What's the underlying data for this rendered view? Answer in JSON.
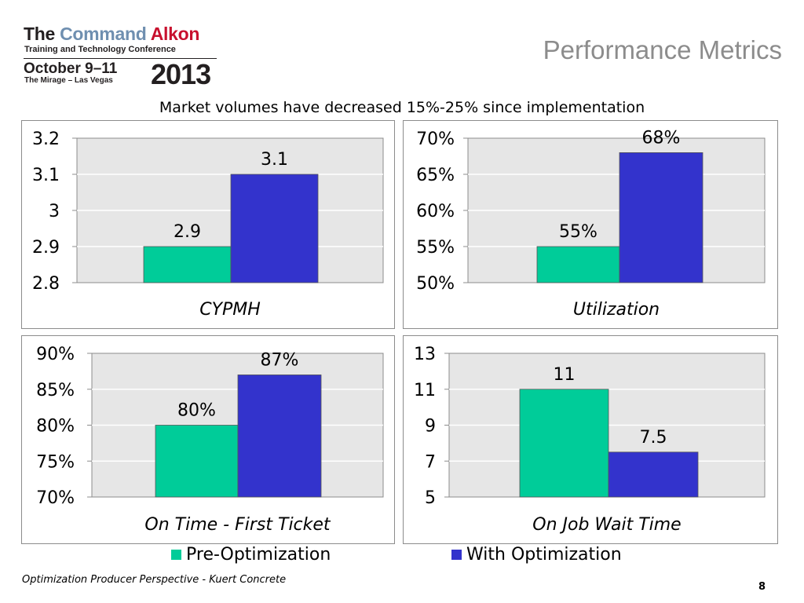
{
  "logo": {
    "line1_a": "The",
    "line1_b": "Command",
    "line1_c": "Alkon",
    "line2": "Training and Technology Conference",
    "line3": "October 9–11",
    "line4": "The Mirage – Las Vegas",
    "year": "2013"
  },
  "title": "Performance Metrics",
  "subtitle": "Market volumes have decreased 15%-25% since implementation",
  "colors": {
    "pre": "#00CC99",
    "with": "#3333CC",
    "plot_bg": "#E6E6E6",
    "border": "#8C8C8C",
    "grid": "#FFFFFF"
  },
  "legend": {
    "pre": "Pre-Optimization",
    "with": "With Optimization"
  },
  "chart_data": [
    {
      "type": "bar",
      "xlabel": "CYPMH",
      "ylim": [
        2.8,
        3.2
      ],
      "yticks": [
        "3.2",
        "3.1",
        "3",
        "2.9",
        "2.8"
      ],
      "values": [
        2.9,
        3.1
      ],
      "labels": [
        "2.9",
        "3.1"
      ],
      "series_names": [
        "Pre-Optimization",
        "With Optimization"
      ],
      "grid": true
    },
    {
      "type": "bar",
      "xlabel": "Utilization",
      "ylim": [
        50,
        70
      ],
      "yticks": [
        "70%",
        "65%",
        "60%",
        "55%",
        "50%"
      ],
      "values": [
        55,
        68
      ],
      "labels": [
        "55%",
        "68%"
      ],
      "series_names": [
        "Pre-Optimization",
        "With Optimization"
      ],
      "grid": true
    },
    {
      "type": "bar",
      "xlabel": "On Time - First Ticket",
      "ylim": [
        70,
        90
      ],
      "yticks": [
        "90%",
        "85%",
        "80%",
        "75%",
        "70%"
      ],
      "values": [
        80,
        87
      ],
      "labels": [
        "80%",
        "87%"
      ],
      "series_names": [
        "Pre-Optimization",
        "With Optimization"
      ],
      "grid": true
    },
    {
      "type": "bar",
      "xlabel": "On Job Wait Time",
      "ylim": [
        5,
        13
      ],
      "yticks": [
        "13",
        "11",
        "9",
        "7",
        "5"
      ],
      "values": [
        11,
        7.5
      ],
      "labels": [
        "11",
        "7.5"
      ],
      "series_names": [
        "Pre-Optimization",
        "With Optimization"
      ],
      "grid": true
    }
  ],
  "footer": "Optimization Producer Perspective - Kuert Concrete",
  "page_number": "8"
}
